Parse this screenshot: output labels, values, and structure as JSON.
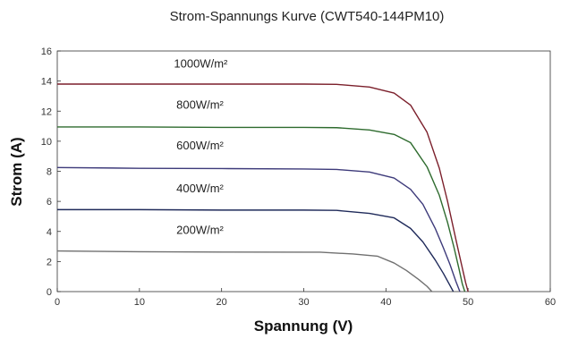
{
  "chart_data": {
    "type": "line",
    "title": "Strom-Spannungs Kurve (CWT540-144PM10)",
    "xlabel": "Spannung (V)",
    "ylabel": "Strom (A)",
    "xlim": [
      0,
      60
    ],
    "ylim": [
      0,
      16
    ],
    "xticks": [
      "0",
      "10",
      "20",
      "30",
      "40",
      "50",
      "60"
    ],
    "yticks": [
      "0",
      "2",
      "4",
      "6",
      "8",
      "10",
      "12",
      "14",
      "16"
    ],
    "grid": false,
    "series": [
      {
        "name": "1000W/m²",
        "color": "#7b1f2b",
        "x": [
          0,
          10,
          20,
          30,
          34,
          38,
          41,
          43,
          45,
          46.5,
          47.5,
          48.5,
          49.2,
          49.7,
          50.0
        ],
        "y": [
          13.8,
          13.8,
          13.8,
          13.8,
          13.78,
          13.6,
          13.2,
          12.4,
          10.6,
          8.2,
          6.0,
          3.5,
          1.8,
          0.6,
          0.0
        ]
      },
      {
        "name": "800W/m²",
        "color": "#2e6b2e",
        "x": [
          0,
          10,
          20,
          30,
          34,
          38,
          41,
          43,
          45,
          46.5,
          47.5,
          48.3,
          48.9,
          49.3,
          49.6
        ],
        "y": [
          10.95,
          10.95,
          10.92,
          10.92,
          10.9,
          10.75,
          10.45,
          9.9,
          8.3,
          6.4,
          4.6,
          2.9,
          1.5,
          0.5,
          0.0
        ]
      },
      {
        "name": "600W/m²",
        "color": "#3d3a7a",
        "x": [
          0,
          10,
          20,
          30,
          34,
          38,
          41,
          43,
          44.5,
          46,
          47,
          47.8,
          48.5,
          49.0
        ],
        "y": [
          8.25,
          8.2,
          8.18,
          8.15,
          8.12,
          7.95,
          7.55,
          6.8,
          5.8,
          4.2,
          2.9,
          1.8,
          0.7,
          0.0
        ]
      },
      {
        "name": "400W/m²",
        "color": "#1f2a5a",
        "x": [
          0,
          10,
          20,
          30,
          34,
          38,
          41,
          43,
          44.5,
          46,
          47,
          47.7,
          48.2
        ],
        "y": [
          5.45,
          5.45,
          5.42,
          5.42,
          5.4,
          5.2,
          4.9,
          4.2,
          3.3,
          2.1,
          1.2,
          0.5,
          0.0
        ]
      },
      {
        "name": "200W/m²",
        "color": "#707070",
        "x": [
          0,
          10,
          20,
          30,
          32,
          36,
          39,
          41,
          42.5,
          44,
          45,
          45.6
        ],
        "y": [
          2.7,
          2.65,
          2.63,
          2.62,
          2.62,
          2.5,
          2.35,
          1.9,
          1.4,
          0.8,
          0.35,
          0.0
        ]
      }
    ],
    "label_positions": [
      {
        "name": "1000W/m²",
        "x": 14.2,
        "y": 14.9
      },
      {
        "name": "800W/m²",
        "x": 14.5,
        "y": 12.15
      },
      {
        "name": "600W/m²",
        "x": 14.5,
        "y": 9.45
      },
      {
        "name": "400W/m²",
        "x": 14.5,
        "y": 6.6
      },
      {
        "name": "200W/m²",
        "x": 14.5,
        "y": 3.85
      }
    ]
  }
}
